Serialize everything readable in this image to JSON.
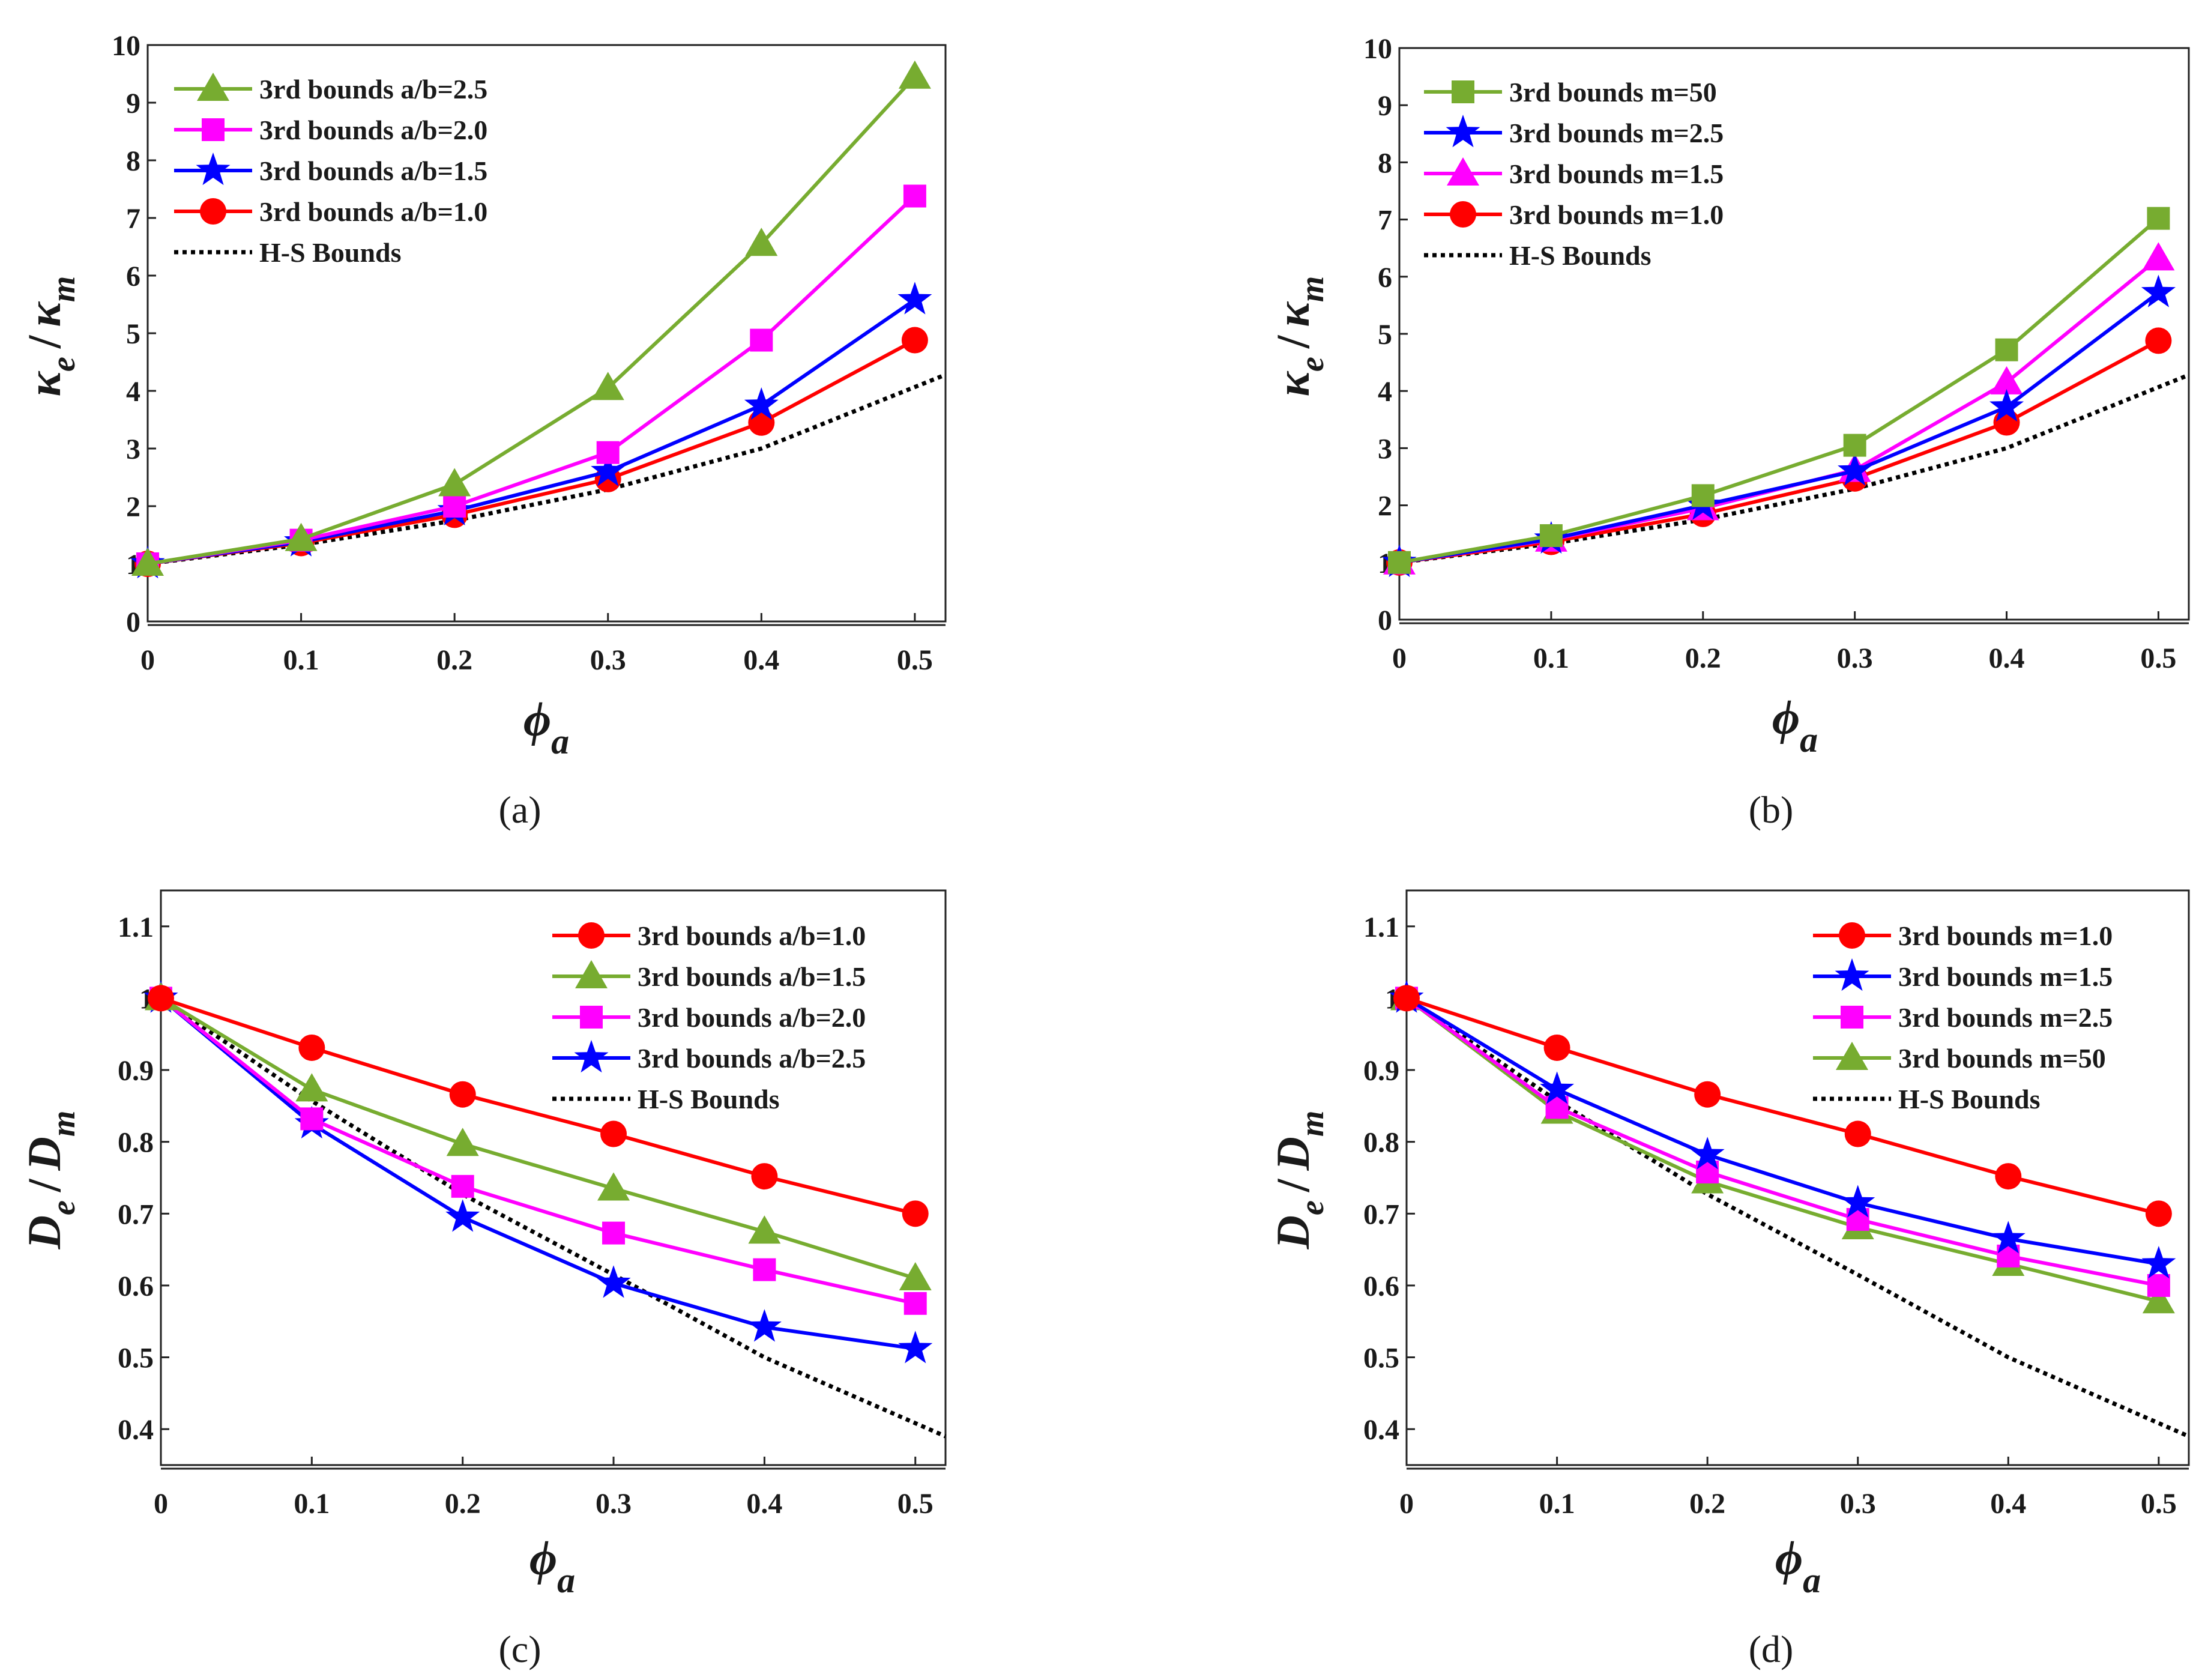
{
  "chart_data": [
    {
      "type": "line",
      "caption": "(a)",
      "xlabel": {
        "main": "ϕ",
        "sub": "a"
      },
      "ylabel": {
        "main1": "κ",
        "sub1": "e",
        "sep": "/",
        "main2": "κ",
        "sub2": "m"
      },
      "x": [
        0,
        0.1,
        0.2,
        0.3,
        0.4,
        0.5
      ],
      "xlim": [
        0,
        0.52
      ],
      "ylim": [
        0,
        10
      ],
      "xticks": [
        "0",
        "0.1",
        "0.2",
        "0.3",
        "0.4",
        "0.5"
      ],
      "yticks": [
        "0",
        "1",
        "2",
        "3",
        "4",
        "5",
        "6",
        "7",
        "8",
        "9",
        "10"
      ],
      "legend_position": "top-left",
      "series": [
        {
          "name": "3rd bounds a/b=2.5",
          "color": "#77ac30",
          "marker": "triangle",
          "values": [
            1.0,
            1.43,
            2.38,
            4.05,
            6.55,
            9.45
          ]
        },
        {
          "name": "3rd bounds a/b=2.0",
          "color": "#ff00ff",
          "marker": "square",
          "values": [
            1.0,
            1.41,
            2.0,
            2.93,
            4.88,
            7.38
          ]
        },
        {
          "name": "3rd bounds a/b=1.5",
          "color": "#0000ff",
          "marker": "star",
          "values": [
            1.0,
            1.38,
            1.92,
            2.6,
            3.75,
            5.58
          ]
        },
        {
          "name": "3rd bounds a/b=1.0",
          "color": "#ff0000",
          "marker": "circle",
          "values": [
            1.0,
            1.36,
            1.85,
            2.47,
            3.45,
            4.88
          ]
        }
      ],
      "reference": {
        "name": "H-S Bounds",
        "color": "#000000",
        "style": "dotted",
        "x": [
          0,
          0.1,
          0.2,
          0.3,
          0.4,
          0.52
        ],
        "values": [
          1.0,
          1.33,
          1.75,
          2.29,
          3.0,
          4.28
        ]
      }
    },
    {
      "type": "line",
      "caption": "(b)",
      "xlabel": {
        "main": "ϕ",
        "sub": "a"
      },
      "ylabel": {
        "main1": "κ",
        "sub1": "e",
        "sep": "/",
        "main2": "κ",
        "sub2": "m"
      },
      "x": [
        0,
        0.1,
        0.2,
        0.3,
        0.4,
        0.5
      ],
      "xlim": [
        0,
        0.52
      ],
      "ylim": [
        0,
        10
      ],
      "xticks": [
        "0",
        "0.1",
        "0.2",
        "0.3",
        "0.4",
        "0.5"
      ],
      "yticks": [
        "0",
        "1",
        "2",
        "3",
        "4",
        "5",
        "6",
        "7",
        "8",
        "9",
        "10"
      ],
      "legend_position": "top-left",
      "series": [
        {
          "name": "3rd bounds m=50",
          "color": "#77ac30",
          "marker": "square",
          "values": [
            1.0,
            1.47,
            2.17,
            3.05,
            4.72,
            7.02
          ]
        },
        {
          "name": "3rd bounds m=2.5",
          "color": "#0000ff",
          "marker": "star",
          "values": [
            1.0,
            1.41,
            2.0,
            2.6,
            3.72,
            5.72
          ]
        },
        {
          "name": "3rd bounds m=1.5",
          "color": "#ff00ff",
          "marker": "triangle",
          "values": [
            1.0,
            1.4,
            1.95,
            2.62,
            4.15,
            6.32
          ]
        },
        {
          "name": "3rd bounds m=1.0",
          "color": "#ff0000",
          "marker": "circle",
          "values": [
            1.0,
            1.36,
            1.85,
            2.47,
            3.45,
            4.88
          ]
        }
      ],
      "reference": {
        "name": "H-S Bounds",
        "color": "#000000",
        "style": "dotted",
        "x": [
          0,
          0.1,
          0.2,
          0.3,
          0.4,
          0.52
        ],
        "values": [
          1.0,
          1.33,
          1.75,
          2.29,
          3.0,
          4.28
        ]
      }
    },
    {
      "type": "line",
      "caption": "(c)",
      "xlabel": {
        "main": "ϕ",
        "sub": "a"
      },
      "ylabel": {
        "main1": "D",
        "sub1": "e",
        "sep": "/",
        "main2": "D",
        "sub2": "m"
      },
      "x": [
        0,
        0.1,
        0.2,
        0.3,
        0.4,
        0.5
      ],
      "xlim": [
        0,
        0.52
      ],
      "ylim": [
        0.35,
        1.15
      ],
      "xticks": [
        "0",
        "0.1",
        "0.2",
        "0.3",
        "0.4",
        "0.5"
      ],
      "yticks": [
        "0.4",
        "0.5",
        "0.6",
        "0.7",
        "0.8",
        "0.9",
        "1",
        "1.1"
      ],
      "legend_position": "top-right",
      "series": [
        {
          "name": "3rd bounds a/b=1.0",
          "color": "#ff0000",
          "marker": "circle",
          "values": [
            1.0,
            0.931,
            0.866,
            0.811,
            0.752,
            0.7
          ]
        },
        {
          "name": "3rd bounds a/b=1.5",
          "color": "#77ac30",
          "marker": "triangle",
          "values": [
            1.0,
            0.873,
            0.797,
            0.735,
            0.675,
            0.61
          ]
        },
        {
          "name": "3rd bounds a/b=2.0",
          "color": "#ff00ff",
          "marker": "square",
          "values": [
            1.0,
            0.832,
            0.738,
            0.673,
            0.622,
            0.575
          ]
        },
        {
          "name": "3rd bounds a/b=2.5",
          "color": "#0000ff",
          "marker": "star",
          "values": [
            1.0,
            0.825,
            0.695,
            0.603,
            0.542,
            0.512
          ]
        }
      ],
      "reference": {
        "name": "H-S Bounds",
        "color": "#000000",
        "style": "dotted",
        "x": [
          0,
          0.1,
          0.2,
          0.3,
          0.4,
          0.52
        ],
        "values": [
          1.0,
          0.857,
          0.727,
          0.615,
          0.5,
          0.39
        ]
      }
    },
    {
      "type": "line",
      "caption": "(d)",
      "xlabel": {
        "main": "ϕ",
        "sub": "a"
      },
      "ylabel": {
        "main1": "D",
        "sub1": "e",
        "sep": "/",
        "main2": "D",
        "sub2": "m"
      },
      "x": [
        0,
        0.1,
        0.2,
        0.3,
        0.4,
        0.5
      ],
      "xlim": [
        0,
        0.52
      ],
      "ylim": [
        0.35,
        1.15
      ],
      "xticks": [
        "0",
        "0.1",
        "0.2",
        "0.3",
        "0.4",
        "0.5"
      ],
      "yticks": [
        "0.4",
        "0.5",
        "0.6",
        "0.7",
        "0.8",
        "0.9",
        "1",
        "1.1"
      ],
      "legend_position": "top-right",
      "series": [
        {
          "name": "3rd bounds m=1.0",
          "color": "#ff0000",
          "marker": "circle",
          "values": [
            1.0,
            0.931,
            0.866,
            0.811,
            0.752,
            0.7
          ]
        },
        {
          "name": "3rd bounds m=1.5",
          "color": "#0000ff",
          "marker": "star",
          "values": [
            1.0,
            0.873,
            0.782,
            0.715,
            0.665,
            0.63
          ]
        },
        {
          "name": "3rd bounds m=2.5",
          "color": "#ff00ff",
          "marker": "square",
          "values": [
            1.0,
            0.848,
            0.758,
            0.692,
            0.641,
            0.6
          ]
        },
        {
          "name": "3rd bounds m=50",
          "color": "#77ac30",
          "marker": "triangle",
          "values": [
            1.0,
            0.842,
            0.745,
            0.681,
            0.63,
            0.578
          ]
        }
      ],
      "reference": {
        "name": "H-S Bounds",
        "color": "#000000",
        "style": "dotted",
        "x": [
          0,
          0.1,
          0.2,
          0.3,
          0.4,
          0.52
        ],
        "values": [
          1.0,
          0.857,
          0.727,
          0.615,
          0.5,
          0.39
        ]
      }
    }
  ]
}
